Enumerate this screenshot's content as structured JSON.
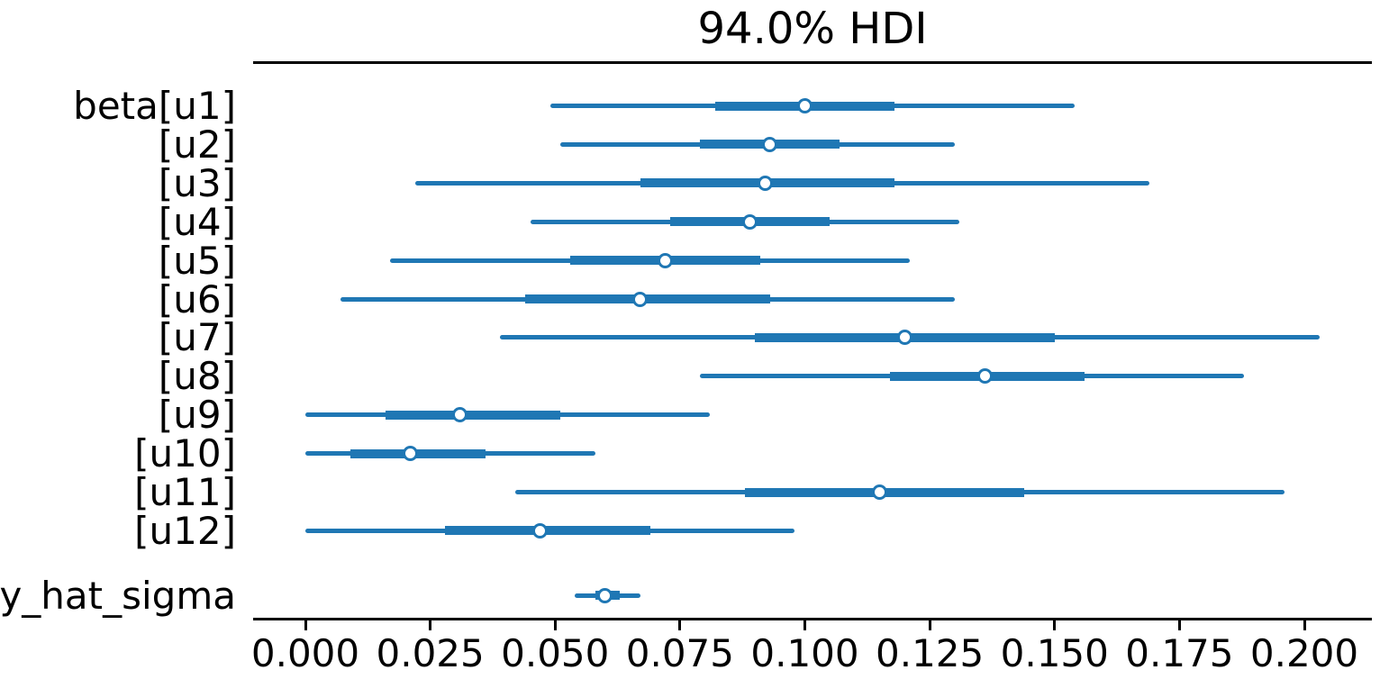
{
  "figure": {
    "background": "#ffffff"
  },
  "chart_data": {
    "type": "forest",
    "title": "94.0% HDI",
    "hdi_prob": 0.94,
    "xlabel": "",
    "ylabel": "",
    "xlim": [
      -0.01,
      0.214
    ],
    "grid": false,
    "legend": false,
    "colors": {
      "interval": "#1f77b4",
      "marker_face": "#ffffff",
      "axis": "#000000",
      "text": "#000000"
    },
    "x_ticks": [
      {
        "label": "0.000",
        "value": 0.0
      },
      {
        "label": "0.025",
        "value": 0.025
      },
      {
        "label": "0.050",
        "value": 0.05
      },
      {
        "label": "0.075",
        "value": 0.075
      },
      {
        "label": "0.100",
        "value": 0.1
      },
      {
        "label": "0.125",
        "value": 0.125
      },
      {
        "label": "0.150",
        "value": 0.15
      },
      {
        "label": "0.175",
        "value": 0.175
      },
      {
        "label": "0.200",
        "value": 0.2
      }
    ],
    "rows": [
      {
        "label": "beta[u1]",
        "hdi_94": [
          0.049,
          0.154
        ],
        "thick_interval": [
          0.082,
          0.118
        ],
        "median": 0.1
      },
      {
        "label": "[u2]",
        "hdi_94": [
          0.051,
          0.13
        ],
        "thick_interval": [
          0.079,
          0.107
        ],
        "median": 0.093
      },
      {
        "label": "[u3]",
        "hdi_94": [
          0.022,
          0.169
        ],
        "thick_interval": [
          0.067,
          0.118
        ],
        "median": 0.092
      },
      {
        "label": "[u4]",
        "hdi_94": [
          0.045,
          0.131
        ],
        "thick_interval": [
          0.073,
          0.105
        ],
        "median": 0.089
      },
      {
        "label": "[u5]",
        "hdi_94": [
          0.017,
          0.121
        ],
        "thick_interval": [
          0.053,
          0.091
        ],
        "median": 0.072
      },
      {
        "label": "[u6]",
        "hdi_94": [
          0.007,
          0.13
        ],
        "thick_interval": [
          0.044,
          0.093
        ],
        "median": 0.067
      },
      {
        "label": "[u7]",
        "hdi_94": [
          0.039,
          0.203
        ],
        "thick_interval": [
          0.09,
          0.15
        ],
        "median": 0.12
      },
      {
        "label": "[u8]",
        "hdi_94": [
          0.079,
          0.188
        ],
        "thick_interval": [
          0.117,
          0.156
        ],
        "median": 0.136
      },
      {
        "label": "[u9]",
        "hdi_94": [
          0.0,
          0.081
        ],
        "thick_interval": [
          0.016,
          0.051
        ],
        "median": 0.031
      },
      {
        "label": "[u10]",
        "hdi_94": [
          0.0,
          0.058
        ],
        "thick_interval": [
          0.009,
          0.036
        ],
        "median": 0.021
      },
      {
        "label": "[u11]",
        "hdi_94": [
          0.042,
          0.196
        ],
        "thick_interval": [
          0.088,
          0.144
        ],
        "median": 0.115
      },
      {
        "label": "[u12]",
        "hdi_94": [
          0.0,
          0.098
        ],
        "thick_interval": [
          0.028,
          0.069
        ],
        "median": 0.047
      },
      {
        "label": "y_hat_sigma",
        "hdi_94": [
          0.054,
          0.067
        ],
        "thick_interval": [
          0.058,
          0.063
        ],
        "median": 0.06
      }
    ]
  }
}
